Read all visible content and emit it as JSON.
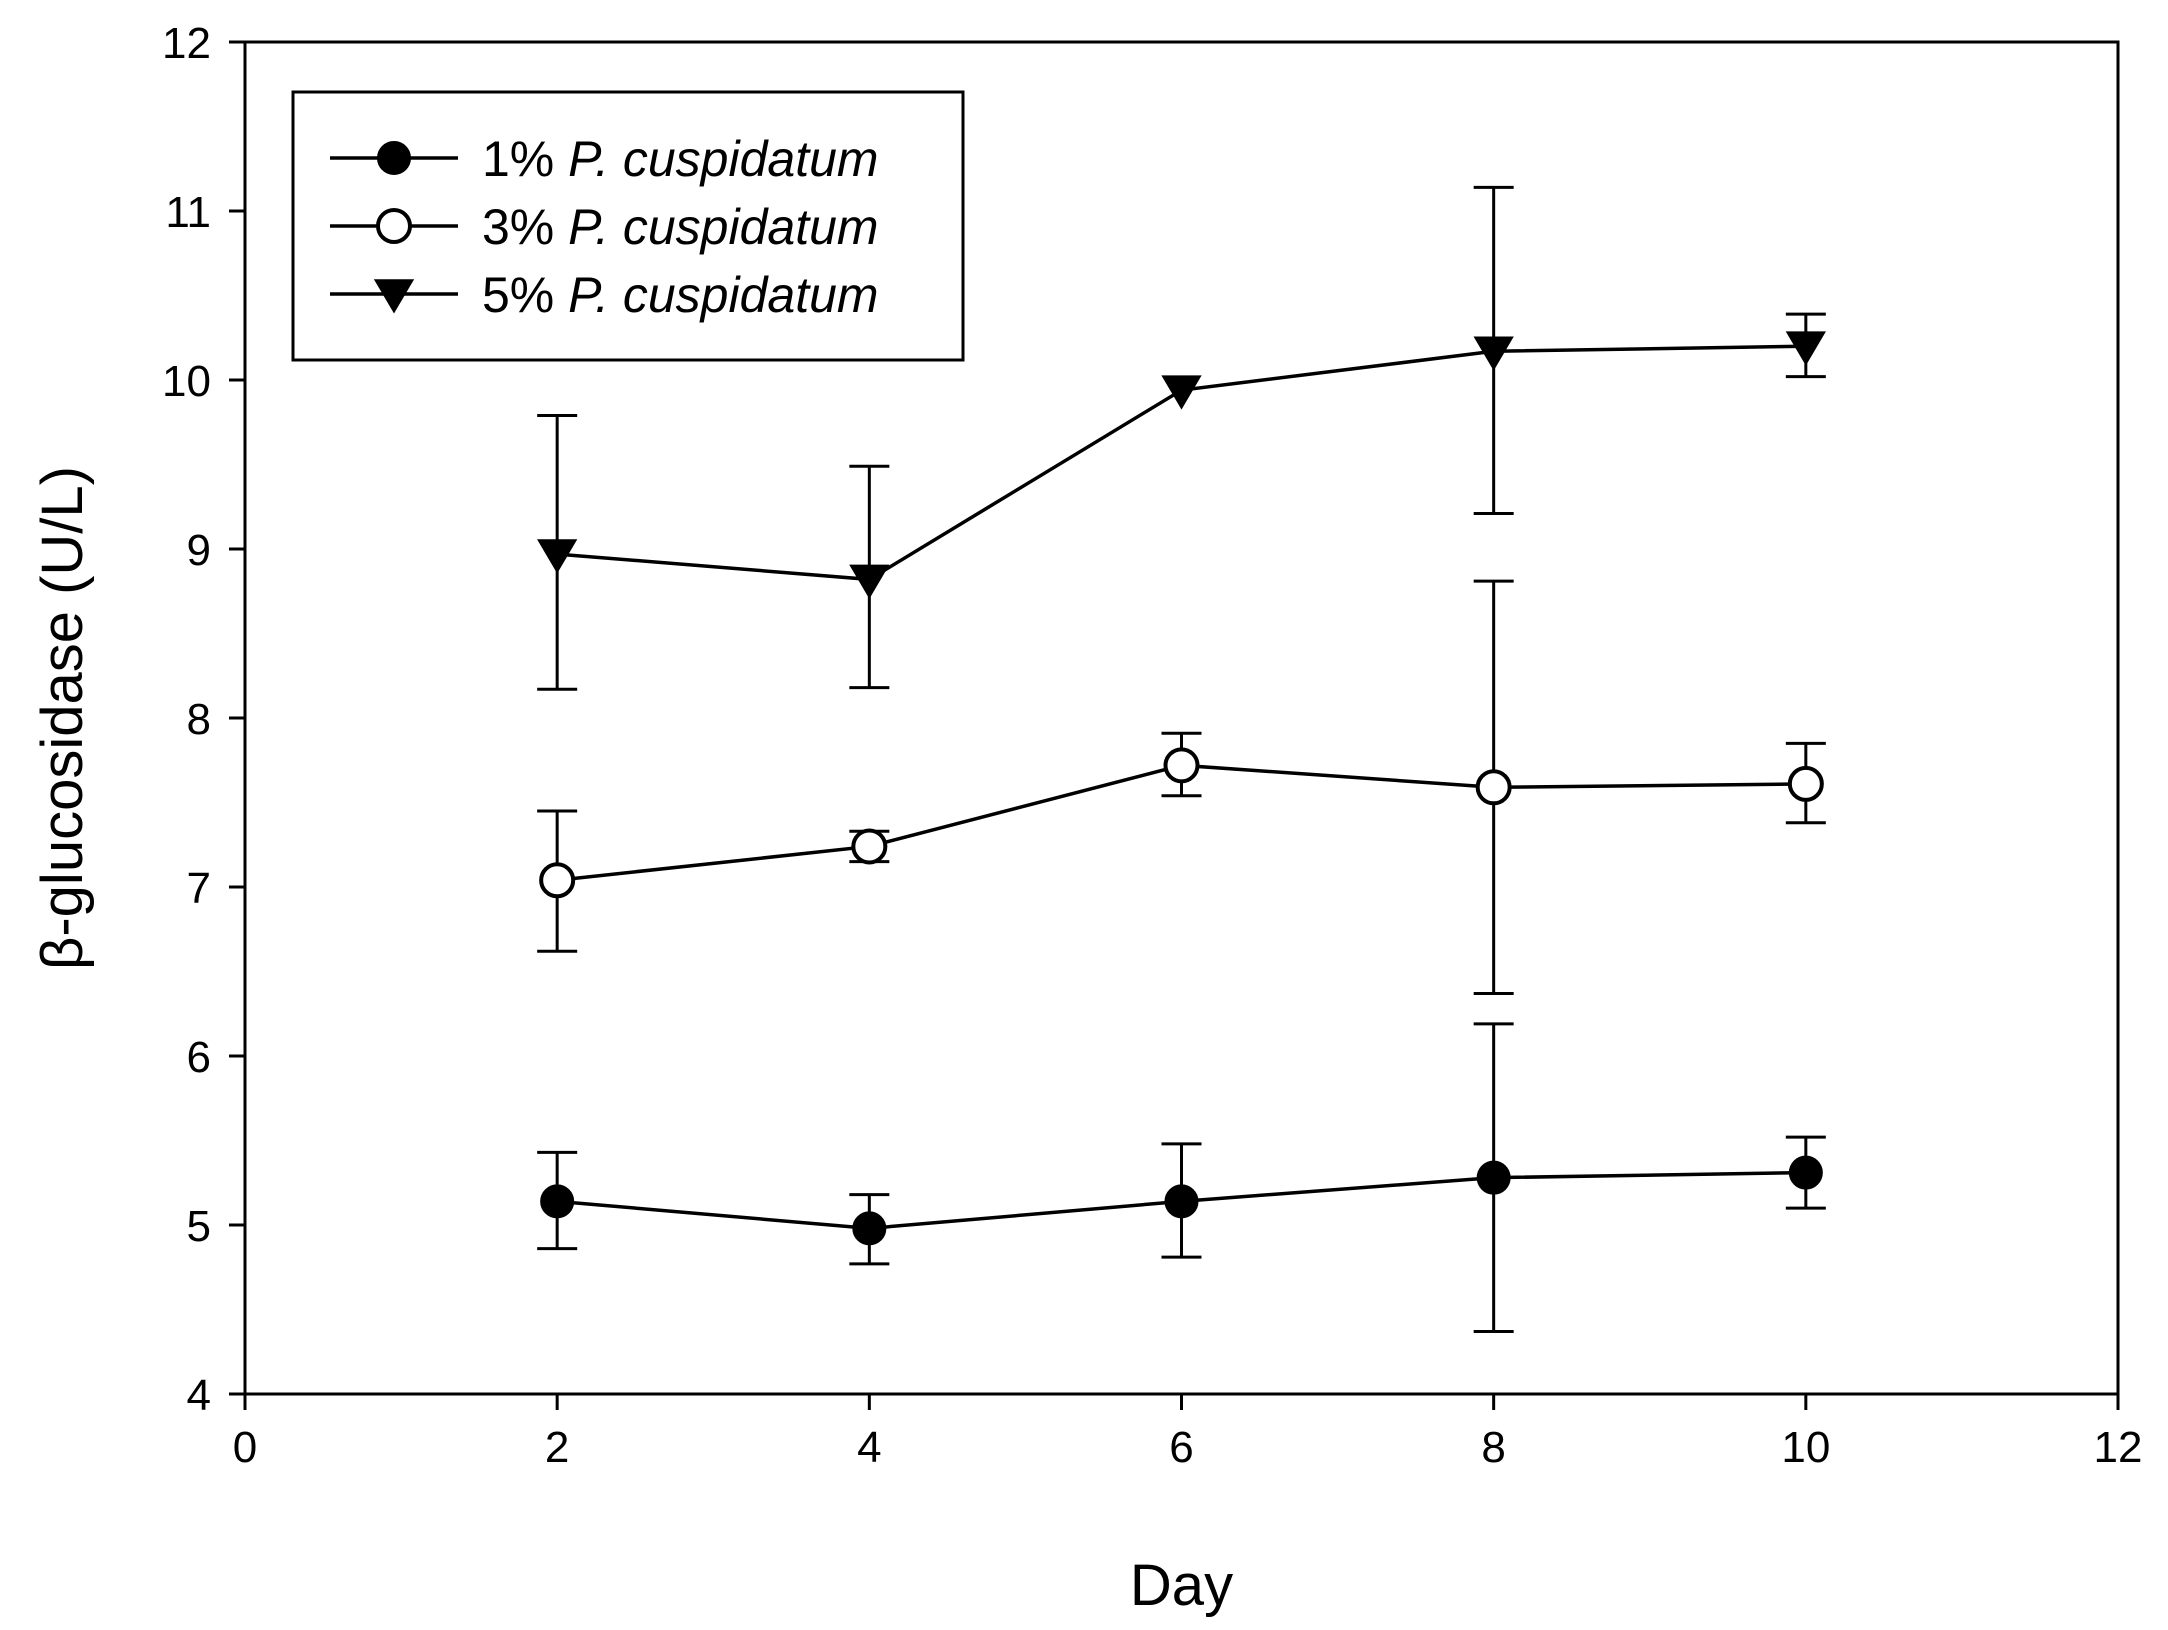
{
  "chart_data": {
    "type": "line",
    "title": "",
    "xlabel": "Day",
    "ylabel": "β-glucosidase (U/L)",
    "xlim": [
      0,
      12
    ],
    "ylim": [
      4,
      12
    ],
    "xticks": [
      0,
      2,
      4,
      6,
      8,
      10,
      12
    ],
    "yticks": [
      4,
      5,
      6,
      7,
      8,
      9,
      10,
      11,
      12
    ],
    "grid": false,
    "legend_position": "top-left",
    "x": [
      2,
      4,
      6,
      8,
      10
    ],
    "series": [
      {
        "name": "1% P. cuspidatum",
        "prefix": "1% ",
        "italic": "P. cuspidatum",
        "marker": "filled-circle",
        "values": [
          5.14,
          4.98,
          5.14,
          5.28,
          5.31
        ],
        "err_low": [
          4.86,
          4.77,
          4.81,
          4.37,
          5.1
        ],
        "err_high": [
          5.43,
          5.18,
          5.48,
          6.19,
          5.52
        ]
      },
      {
        "name": "3% P. cuspidatum",
        "prefix": "3% ",
        "italic": "P. cuspidatum",
        "marker": "open-circle",
        "values": [
          7.04,
          7.24,
          7.72,
          7.59,
          7.61
        ],
        "err_low": [
          6.62,
          7.15,
          7.54,
          6.37,
          7.38
        ],
        "err_high": [
          7.45,
          7.33,
          7.91,
          8.81,
          7.85
        ]
      },
      {
        "name": "5% P. cuspidatum",
        "prefix": "5% ",
        "italic": "P. cuspidatum",
        "marker": "filled-triangle-down",
        "values": [
          8.97,
          8.82,
          9.94,
          10.17,
          10.2
        ],
        "err_low": [
          8.17,
          8.18,
          9.94,
          9.21,
          10.02
        ],
        "err_high": [
          9.79,
          9.49,
          9.94,
          11.14,
          10.39
        ]
      }
    ]
  }
}
